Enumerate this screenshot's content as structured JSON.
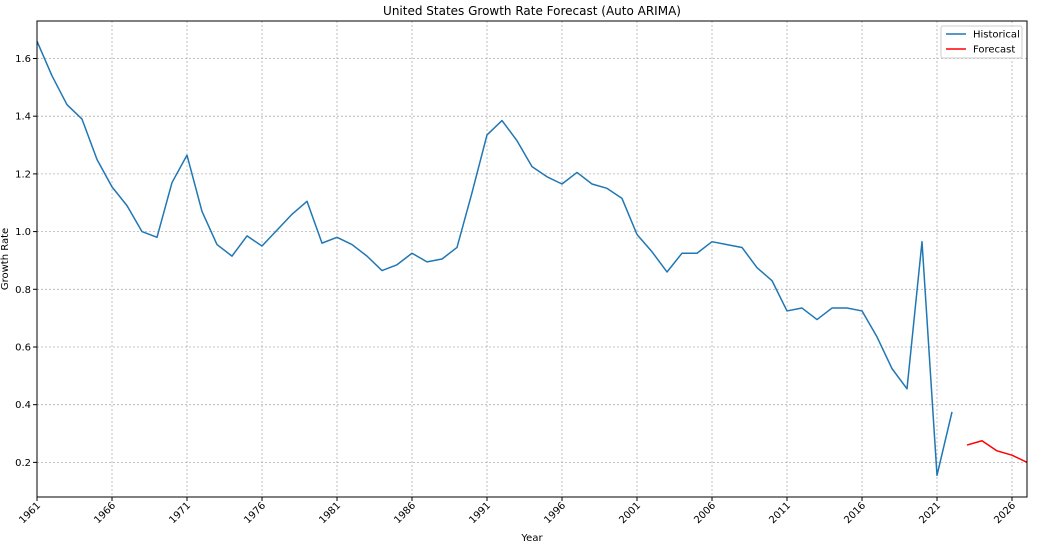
{
  "chart_data": {
    "type": "line",
    "title": "United States Growth Rate Forecast (Auto ARIMA)",
    "xlabel": "Year",
    "ylabel": "Growth Rate",
    "xlim": [
      1961,
      2027
    ],
    "ylim": [
      0.08,
      1.73
    ],
    "xticks": [
      1961,
      1966,
      1971,
      1976,
      1981,
      1986,
      1991,
      1996,
      2001,
      2006,
      2011,
      2016,
      2021,
      2026
    ],
    "yticks": [
      0.2,
      0.4,
      0.6,
      0.8,
      1.0,
      1.2,
      1.4,
      1.6
    ],
    "ytick_labels": [
      "0.2",
      "0.4",
      "0.6",
      "0.8",
      "1.0",
      "1.2",
      "1.4",
      "1.6"
    ],
    "grid": true,
    "legend_position": "top-right",
    "series": [
      {
        "name": "Historical",
        "color": "#1f77b4",
        "x": [
          1961,
          1962,
          1963,
          1964,
          1965,
          1966,
          1967,
          1968,
          1969,
          1970,
          1971,
          1972,
          1973,
          1974,
          1975,
          1976,
          1977,
          1978,
          1979,
          1980,
          1981,
          1982,
          1983,
          1984,
          1985,
          1986,
          1987,
          1988,
          1989,
          1990,
          1991,
          1992,
          1993,
          1994,
          1995,
          1996,
          1997,
          1998,
          1999,
          2000,
          2001,
          2002,
          2003,
          2004,
          2005,
          2006,
          2007,
          2008,
          2009,
          2010,
          2011,
          2012,
          2013,
          2014,
          2015,
          2016,
          2017,
          2018,
          2019,
          2020,
          2021,
          2022
        ],
        "values": [
          1.66,
          1.54,
          1.44,
          1.39,
          1.25,
          1.155,
          1.09,
          1.0,
          0.98,
          1.17,
          1.265,
          1.07,
          0.955,
          0.915,
          0.985,
          0.95,
          1.005,
          1.06,
          1.105,
          0.96,
          0.98,
          0.955,
          0.915,
          0.865,
          0.885,
          0.925,
          0.895,
          0.905,
          0.945,
          1.135,
          1.335,
          1.385,
          1.315,
          1.225,
          1.19,
          1.165,
          1.205,
          1.165,
          1.15,
          1.115,
          0.99,
          0.93,
          0.86,
          0.925,
          0.925,
          0.965,
          0.955,
          0.945,
          0.875,
          0.83,
          0.725,
          0.735,
          0.695,
          0.735,
          0.735,
          0.725,
          0.635,
          0.525,
          0.455,
          0.965,
          0.155,
          0.375
        ]
      },
      {
        "name": "Forecast",
        "color": "#ff0000",
        "x": [
          2023,
          2024,
          2025,
          2026,
          2027
        ],
        "values": [
          0.26,
          0.275,
          0.24,
          0.225,
          0.2
        ]
      }
    ]
  }
}
